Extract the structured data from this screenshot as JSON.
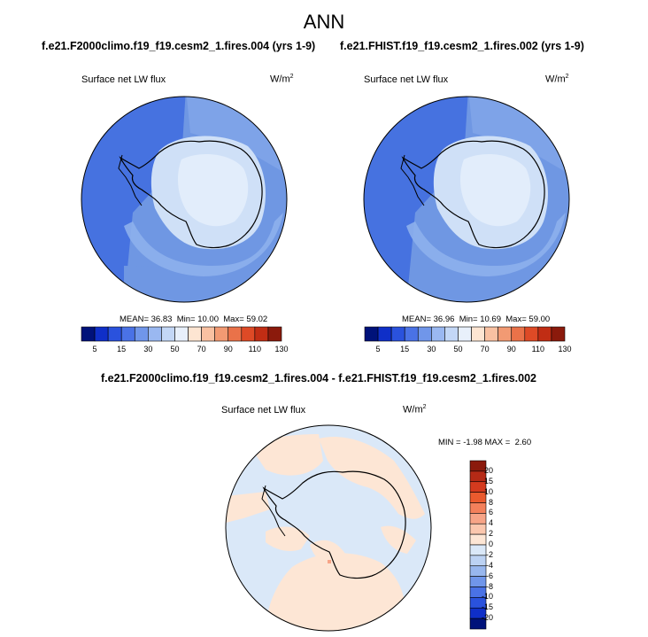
{
  "title": "ANN",
  "colors": {
    "ocean_mid": "#6f97e3",
    "ocean_dark": "#3f6bdf",
    "ocean_light": "#8db0ec",
    "ice": "#cfe0f7",
    "ice_light": "#e2edfb",
    "diff_neutral": "#dae8f8",
    "diff_pos": "#fde6d5",
    "coast": "#000000"
  },
  "panels": [
    {
      "case": "f.e21.F2000climo.f19_f19.cesm2_1.fires.004 (yrs 1-9)",
      "variable": "Surface net LW flux",
      "units_base": "W/m",
      "units_exp": "2",
      "mean_label": "MEAN=",
      "mean": "36.83",
      "min_label": "Min=",
      "min": "10.00",
      "max_label": "Max=",
      "max": "59.02"
    },
    {
      "case": "f.e21.FHIST.f19_f19.cesm2_1.fires.002 (yrs 1-9)",
      "variable": "Surface net LW flux",
      "units_base": "W/m",
      "units_exp": "2",
      "mean_label": "MEAN=",
      "mean": "36.96",
      "min_label": "Min=",
      "min": "10.69",
      "max_label": "Max=",
      "max": "59.00"
    }
  ],
  "colorbar": {
    "ticks": [
      "5",
      "15",
      "30",
      "50",
      "70",
      "90",
      "110",
      "130"
    ],
    "colors": [
      "#00127a",
      "#0f2fc8",
      "#2a52dd",
      "#4a72e6",
      "#7096ea",
      "#9ab8f1",
      "#c3d7f6",
      "#e8f0fb",
      "#fde5d2",
      "#f9c1a2",
      "#f29a73",
      "#ea7249",
      "#de4a26",
      "#c12d14",
      "#8b1a0c"
    ]
  },
  "difference": {
    "title": "f.e21.F2000climo.f19_f19.cesm2_1.fires.004 - f.e21.FHIST.f19_f19.cesm2_1.fires.002",
    "variable": "Surface net LW flux",
    "units_base": "W/m",
    "units_exp": "2",
    "min_label": "MIN =",
    "min": "-1.98",
    "max_label": "MAX =",
    "max": "2.60",
    "colorbar": {
      "ticks": [
        "20",
        "15",
        "10",
        "8",
        "6",
        "4",
        "2",
        "0",
        "-2",
        "-4",
        "-6",
        "-8",
        "-10",
        "-15",
        "-20"
      ],
      "colors": [
        "#8b1a0c",
        "#b52a16",
        "#d43a1e",
        "#ea5a2e",
        "#f3805b",
        "#f7a487",
        "#fbc7ae",
        "#fde6d5",
        "#dae8f8",
        "#bcd2f3",
        "#98b7ee",
        "#7096ea",
        "#4a72e6",
        "#2a52dd",
        "#0f2fc8",
        "#00127a"
      ]
    }
  }
}
